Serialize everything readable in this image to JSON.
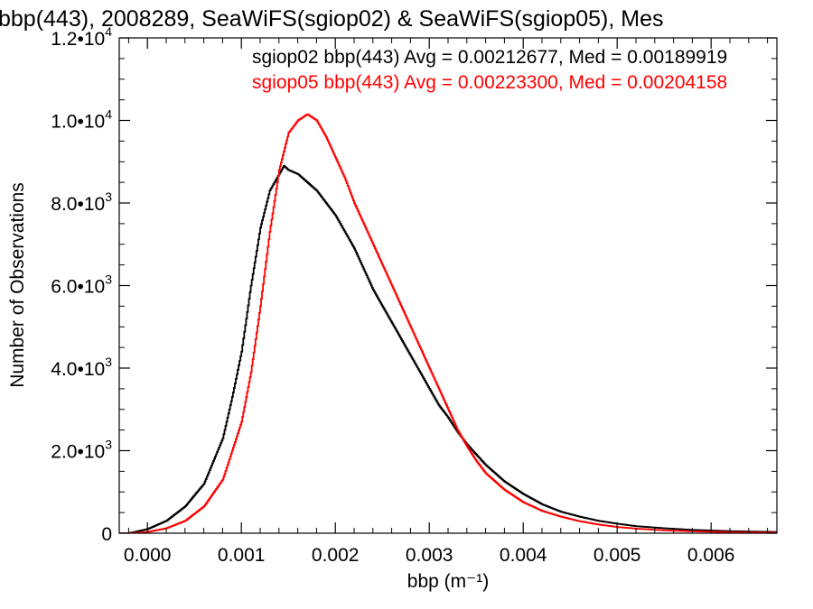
{
  "chart_data": {
    "type": "line",
    "title": "bbp(443), 2008289, SeaWiFS(sgiop02) & SeaWiFS(sgiop05), Mes",
    "xlabel": "bbp (m⁻¹)",
    "ylabel": "Number of Observations",
    "xlim": [
      -0.0003,
      0.0067
    ],
    "ylim": [
      0,
      12000
    ],
    "grid": false,
    "legend_position": "top-right",
    "x_ticks": [
      {
        "value": 0.0,
        "label": "0.000"
      },
      {
        "value": 0.001,
        "label": "0.001"
      },
      {
        "value": 0.002,
        "label": "0.002"
      },
      {
        "value": 0.003,
        "label": "0.003"
      },
      {
        "value": 0.004,
        "label": "0.004"
      },
      {
        "value": 0.005,
        "label": "0.005"
      },
      {
        "value": 0.006,
        "label": "0.006"
      }
    ],
    "y_ticks": [
      {
        "value": 0,
        "mantissa": "0",
        "exponent": ""
      },
      {
        "value": 2000,
        "mantissa": "2.0•10",
        "exponent": "3"
      },
      {
        "value": 4000,
        "mantissa": "4.0•10",
        "exponent": "3"
      },
      {
        "value": 6000,
        "mantissa": "6.0•10",
        "exponent": "3"
      },
      {
        "value": 8000,
        "mantissa": "8.0•10",
        "exponent": "3"
      },
      {
        "value": 10000,
        "mantissa": "1.0•10",
        "exponent": "4"
      },
      {
        "value": 12000,
        "mantissa": "1.2•10",
        "exponent": "4"
      }
    ],
    "series": [
      {
        "name": "sgiop02 bbp(443)",
        "legend_text": "sgiop02 bbp(443) Avg = 0.00212677, Med = 0.00189919",
        "color": "#000000",
        "x": [
          -0.0002,
          0.0,
          0.0002,
          0.0004,
          0.0006,
          0.0008,
          0.0009,
          0.001,
          0.0011,
          0.0012,
          0.0013,
          0.0014,
          0.00145,
          0.0015,
          0.0016,
          0.0017,
          0.0018,
          0.0019,
          0.002,
          0.0021,
          0.0022,
          0.0023,
          0.0024,
          0.0025,
          0.0026,
          0.0027,
          0.0028,
          0.0029,
          0.003,
          0.0031,
          0.0032,
          0.0033,
          0.0034,
          0.0035,
          0.0036,
          0.0038,
          0.004,
          0.0042,
          0.0044,
          0.0046,
          0.0048,
          0.005,
          0.0052,
          0.0055,
          0.0058,
          0.0062,
          0.0067
        ],
        "y": [
          0,
          100,
          300,
          650,
          1200,
          2300,
          3300,
          4400,
          6000,
          7400,
          8300,
          8700,
          8900,
          8800,
          8700,
          8500,
          8300,
          8000,
          7700,
          7300,
          6900,
          6400,
          5900,
          5500,
          5100,
          4700,
          4300,
          3900,
          3500,
          3100,
          2800,
          2450,
          2150,
          1900,
          1650,
          1250,
          950,
          700,
          520,
          400,
          300,
          230,
          170,
          120,
          80,
          50,
          30
        ]
      },
      {
        "name": "sgiop05 bbp(443)",
        "legend_text": "sgiop05 bbp(443) Avg = 0.00223300, Med = 0.00204158",
        "color": "#ff0000",
        "x": [
          -0.0002,
          0.0,
          0.0002,
          0.0004,
          0.0006,
          0.0008,
          0.001,
          0.0011,
          0.0012,
          0.0013,
          0.0014,
          0.0015,
          0.0016,
          0.0017,
          0.0018,
          0.0019,
          0.002,
          0.0021,
          0.0022,
          0.0023,
          0.0024,
          0.0025,
          0.0026,
          0.0027,
          0.0028,
          0.0029,
          0.003,
          0.0031,
          0.0032,
          0.0033,
          0.0034,
          0.0035,
          0.0036,
          0.0038,
          0.004,
          0.0042,
          0.0044,
          0.0046,
          0.0048,
          0.005,
          0.0052,
          0.0055,
          0.0058,
          0.0062,
          0.0067
        ],
        "y": [
          0,
          30,
          120,
          300,
          650,
          1300,
          2700,
          3900,
          5500,
          7300,
          8800,
          9700,
          10000,
          10150,
          10000,
          9600,
          9100,
          8600,
          8000,
          7500,
          7000,
          6500,
          6000,
          5500,
          5000,
          4500,
          4000,
          3500,
          3000,
          2500,
          2100,
          1750,
          1450,
          1050,
          750,
          540,
          400,
          290,
          210,
          150,
          110,
          70,
          45,
          25,
          15
        ]
      }
    ]
  }
}
